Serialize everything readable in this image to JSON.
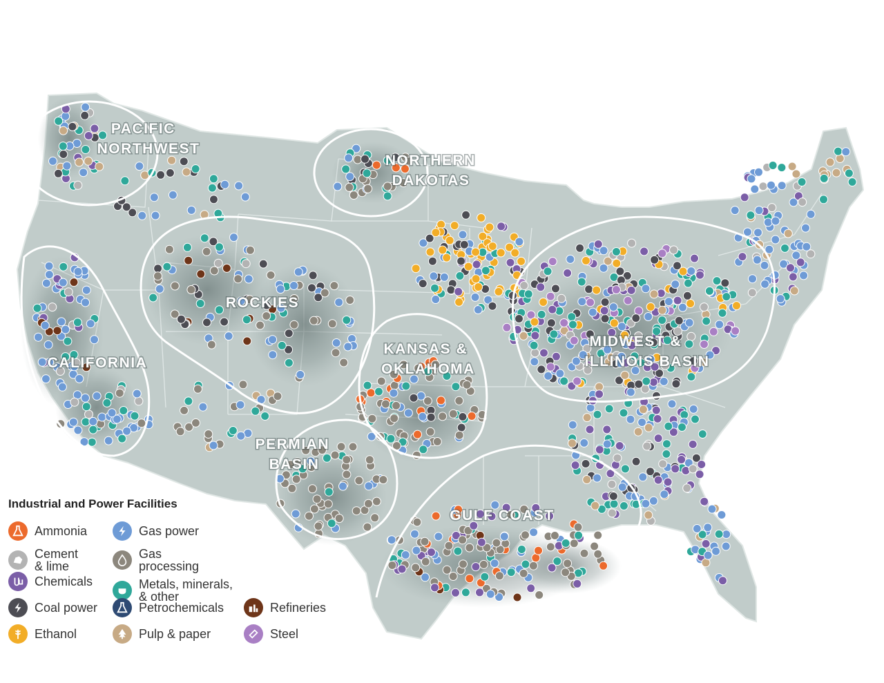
{
  "regions": [
    {
      "key": "pnw",
      "lines": [
        "PACIFIC",
        "NORTHWEST"
      ]
    },
    {
      "key": "nd",
      "lines": [
        "NORTHERN",
        "DAKOTAS"
      ]
    },
    {
      "key": "rockies",
      "lines": [
        "ROCKIES"
      ]
    },
    {
      "key": "california",
      "lines": [
        "CALIFORNIA"
      ]
    },
    {
      "key": "ko",
      "lines": [
        "KANSAS &",
        "OKLAHOMA"
      ]
    },
    {
      "key": "midwest",
      "lines": [
        "MIDWEST &",
        "ILLINOIS BASIN"
      ]
    },
    {
      "key": "permian",
      "lines": [
        "PERMIAN",
        "BASIN"
      ]
    },
    {
      "key": "gulf",
      "lines": [
        "GULF COAST"
      ]
    }
  ],
  "legend": {
    "title": "Industrial and Power Facilities",
    "items": [
      {
        "key": "ammonia",
        "label": "Ammonia",
        "color": "#ec6a2c",
        "icon": "flask-icon"
      },
      {
        "key": "cement",
        "label": "Cement\n& lime",
        "color": "#b3b3b3",
        "icon": "rock-icon"
      },
      {
        "key": "chemicals",
        "label": "Chemicals",
        "color": "#7b5ea7",
        "icon": "beakers-icon"
      },
      {
        "key": "coal",
        "label": "Coal power",
        "color": "#4d4d54",
        "icon": "lightning-icon"
      },
      {
        "key": "ethanol",
        "label": "Ethanol",
        "color": "#f2ad27",
        "icon": "wheat-icon"
      },
      {
        "key": "gaspower",
        "label": "Gas power",
        "color": "#6e9bd6",
        "icon": "lightning-icon"
      },
      {
        "key": "gasproc",
        "label": "Gas\nprocessing",
        "color": "#8c877d",
        "icon": "flame-icon"
      },
      {
        "key": "metals",
        "label": "Metals, minerals,\n& other",
        "color": "#2fa89a",
        "icon": "cauldron-icon"
      },
      {
        "key": "petro",
        "label": "Petrochemicals",
        "color": "#2e4a73",
        "icon": "flask-icon"
      },
      {
        "key": "pulp",
        "label": "Pulp & paper",
        "color": "#c7aa85",
        "icon": "tree-icon"
      },
      {
        "key": "refineries",
        "label": "Refineries",
        "color": "#6e3519",
        "icon": "tanks-icon"
      },
      {
        "key": "steel",
        "label": "Steel",
        "color": "#a97fc4",
        "icon": "beam-icon"
      }
    ]
  }
}
